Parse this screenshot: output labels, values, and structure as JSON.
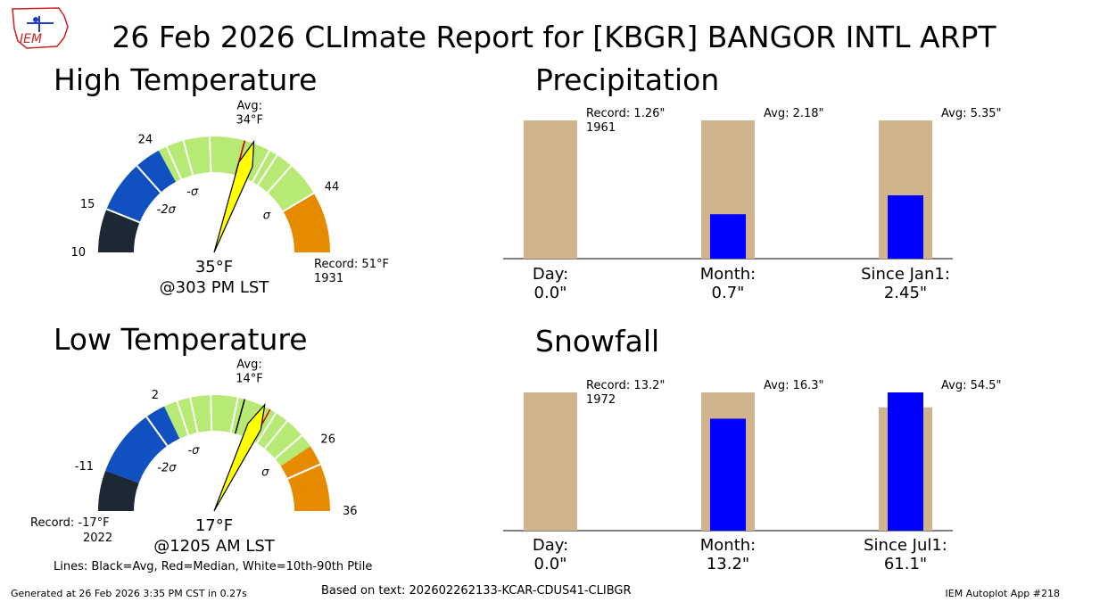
{
  "header": {
    "title": "26 Feb 2026 CLImate Report for [KBGR] BANGOR INTL ARPT",
    "logo_text": "IEM"
  },
  "sections": {
    "high": "High Temperature",
    "low": "Low Temperature",
    "precip": "Precipitation",
    "snow": "Snowfall"
  },
  "high_gauge": {
    "avg_label": "Avg:",
    "avg_value": "34°F",
    "obs_temp": "35°F",
    "obs_time": "@303 PM LST",
    "record_label": "Record: 51°F",
    "record_year": "1931",
    "sigma_minus2": "-2σ",
    "sigma_minus1": "-σ",
    "sigma_plus1": "σ"
  },
  "low_gauge": {
    "avg_label": "Avg:",
    "avg_value": "14°F",
    "obs_temp": "17°F",
    "obs_time": "@1205 AM LST",
    "record_label": "Record: -17°F",
    "record_year": "2022",
    "sigma_minus2": "-2σ",
    "sigma_minus1": "-σ",
    "sigma_plus1": "σ"
  },
  "footer": {
    "lines_legend": "Lines: Black=Avg, Red=Median, White=10th-90th Ptile",
    "generated": "Generated at 26 Feb 2026 3:35 PM CST in 0.27s",
    "based_on": "Based on text: 202602262133-KCAR-CDUS41-CLIBGR",
    "app": "IEM Autoplot App #218"
  },
  "chart_data": [
    {
      "type": "gauge",
      "name": "high_temperature",
      "min": 10,
      "max": 51,
      "ticks": [
        10,
        15,
        24,
        44
      ],
      "tick_labels": [
        "10",
        "15",
        "24",
        "44"
      ],
      "avg": 34,
      "median": 34,
      "observed": 35,
      "bands": [
        {
          "from": 10,
          "to": 15,
          "color": "#1c2833"
        },
        {
          "from": 15,
          "to": 24,
          "color": "#1050c0"
        },
        {
          "from": 24,
          "to": 44,
          "color": "#b6ea74"
        },
        {
          "from": 44,
          "to": 51,
          "color": "#e68a00"
        }
      ],
      "percentile_lines": [
        15,
        21,
        25,
        27,
        30,
        37,
        38,
        40,
        44
      ]
    },
    {
      "type": "gauge",
      "name": "low_temperature",
      "min": -17,
      "max": 36,
      "ticks": [
        -11,
        2,
        26,
        36
      ],
      "tick_labels": [
        "-11",
        "2",
        "26",
        "36"
      ],
      "avg": 14,
      "median": 18,
      "observed": 17,
      "bands": [
        {
          "from": -17,
          "to": -11,
          "color": "#1c2833"
        },
        {
          "from": -11,
          "to": 2,
          "color": "#1050c0"
        },
        {
          "from": 2,
          "to": 26,
          "color": "#b6ea74"
        },
        {
          "from": 26,
          "to": 36,
          "color": "#e68a00"
        }
      ],
      "percentile_lines": [
        -1,
        4,
        6,
        9,
        13,
        19,
        21,
        24,
        29
      ]
    },
    {
      "type": "bar",
      "name": "precipitation",
      "categories": [
        "Day:",
        "Month:",
        "Since Jan1:"
      ],
      "values": [
        0.0,
        0.7,
        2.45
      ],
      "value_labels": [
        "0.0\"",
        "0.7\"",
        "2.45\""
      ],
      "reference": [
        1.26,
        2.18,
        5.35
      ],
      "reference_labels": [
        "Record: 1.26\"",
        "Avg: 2.18\"",
        "Avg: 5.35\""
      ],
      "reference_sublabels": [
        "1961",
        "",
        ""
      ],
      "colors": {
        "reference": "#d2b48c",
        "observed": "#0000ff"
      }
    },
    {
      "type": "bar",
      "name": "snowfall",
      "categories": [
        "Day:",
        "Month:",
        "Since Jul1:"
      ],
      "values": [
        0.0,
        13.2,
        61.1
      ],
      "value_labels": [
        "0.0\"",
        "13.2\"",
        "61.1\""
      ],
      "reference": [
        13.2,
        16.3,
        54.5
      ],
      "reference_labels": [
        "Record: 13.2\"",
        "Avg: 16.3\"",
        "Avg: 54.5\""
      ],
      "reference_sublabels": [
        "1972",
        "",
        ""
      ],
      "colors": {
        "reference": "#d2b48c",
        "observed": "#0000ff"
      }
    }
  ]
}
